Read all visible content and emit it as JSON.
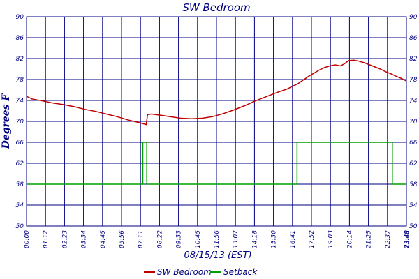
{
  "chart_data": {
    "type": "line",
    "title": "SW Bedroom",
    "xlabel": "08/15/13 (EST)",
    "ylabel": "Degrees F",
    "ylim": [
      50,
      90
    ],
    "yticks": [
      50,
      54,
      58,
      62,
      66,
      70,
      74,
      78,
      82,
      86,
      90
    ],
    "xticks": [
      "00:00",
      "01:12",
      "02:23",
      "03:34",
      "04:45",
      "05:56",
      "07:11",
      "08:22",
      "09:33",
      "10:45",
      "11:56",
      "13:07",
      "14:18",
      "15:30",
      "16:41",
      "17:52",
      "19:03",
      "20:14",
      "21:25",
      "22:37",
      "23:40",
      "23:48"
    ],
    "grid": true,
    "legend_position": "bottom",
    "colors": {
      "frame": "#000080",
      "grid": "#000080",
      "sw_bedroom": "#c00000",
      "setback": "#00a000"
    },
    "series": [
      {
        "name": "SW Bedroom",
        "points": [
          [
            0,
            74.8
          ],
          [
            20,
            74.3
          ],
          [
            60,
            73.9
          ],
          [
            100,
            73.5
          ],
          [
            140,
            73.2
          ],
          [
            180,
            72.8
          ],
          [
            220,
            72.3
          ],
          [
            260,
            71.9
          ],
          [
            300,
            71.4
          ],
          [
            340,
            70.9
          ],
          [
            380,
            70.3
          ],
          [
            420,
            69.8
          ],
          [
            450,
            69.4
          ],
          [
            455,
            71.3
          ],
          [
            470,
            71.4
          ],
          [
            500,
            71.2
          ],
          [
            540,
            70.9
          ],
          [
            580,
            70.6
          ],
          [
            620,
            70.5
          ],
          [
            660,
            70.6
          ],
          [
            700,
            70.9
          ],
          [
            740,
            71.5
          ],
          [
            780,
            72.2
          ],
          [
            820,
            73.0
          ],
          [
            860,
            73.9
          ],
          [
            900,
            74.7
          ],
          [
            940,
            75.5
          ],
          [
            980,
            76.2
          ],
          [
            1000,
            76.7
          ],
          [
            1020,
            77.2
          ],
          [
            1040,
            77.9
          ],
          [
            1060,
            78.6
          ],
          [
            1080,
            79.2
          ],
          [
            1100,
            79.8
          ],
          [
            1120,
            80.3
          ],
          [
            1140,
            80.6
          ],
          [
            1160,
            80.8
          ],
          [
            1180,
            80.6
          ],
          [
            1195,
            81.0
          ],
          [
            1210,
            81.6
          ],
          [
            1230,
            81.7
          ],
          [
            1250,
            81.5
          ],
          [
            1270,
            81.2
          ],
          [
            1290,
            80.8
          ],
          [
            1310,
            80.4
          ],
          [
            1330,
            80.0
          ],
          [
            1350,
            79.5
          ],
          [
            1370,
            79.1
          ],
          [
            1390,
            78.6
          ],
          [
            1410,
            78.2
          ],
          [
            1428,
            77.7
          ]
        ]
      },
      {
        "name": "Setback",
        "points": [
          [
            0,
            58
          ],
          [
            437,
            58
          ],
          [
            437,
            66
          ],
          [
            452,
            66
          ],
          [
            452,
            58
          ],
          [
            1017,
            58
          ],
          [
            1017,
            66
          ],
          [
            1375,
            66
          ],
          [
            1375,
            58
          ],
          [
            1428,
            58
          ]
        ]
      }
    ]
  }
}
